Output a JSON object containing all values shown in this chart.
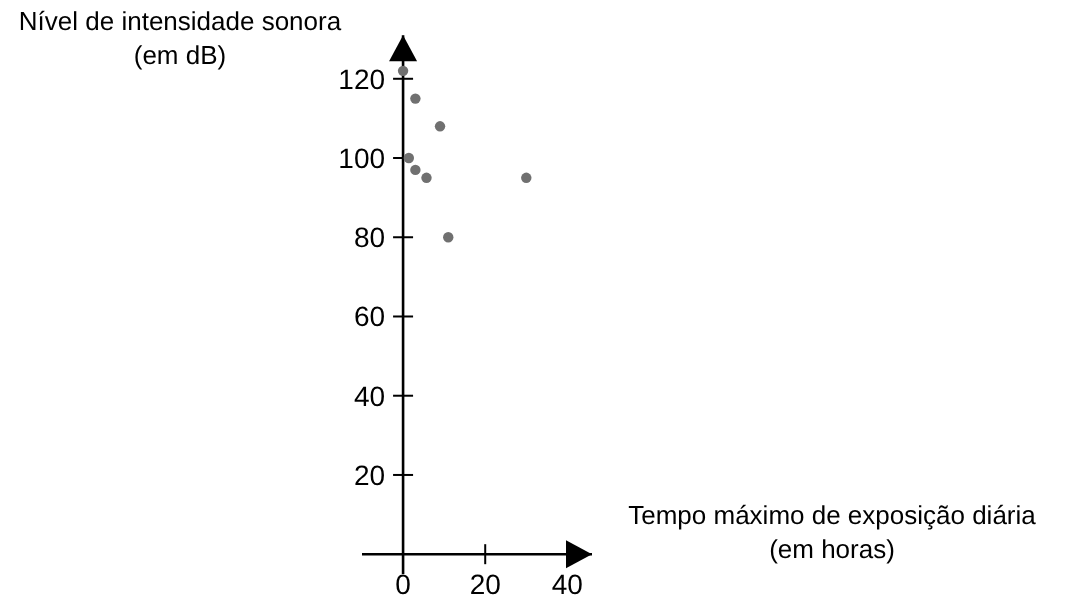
{
  "chart_data": {
    "type": "scatter",
    "xlabel": "Tempo máximo de exposição diária\n(em horas)",
    "ylabel": "Nível de intensidade sonora\n(em dB)",
    "x": [
      0,
      3,
      9,
      1.4,
      3,
      5.7,
      30,
      11
    ],
    "values": [
      122,
      115,
      108,
      100,
      97,
      95,
      95,
      80
    ],
    "color": "#707070",
    "marker": "circle",
    "grid": false,
    "xlim": [
      -10,
      46
    ],
    "ylim": [
      -5,
      131
    ],
    "xticks": [
      0,
      20,
      40
    ],
    "yticks": [
      20,
      40,
      60,
      80,
      100,
      120
    ]
  }
}
